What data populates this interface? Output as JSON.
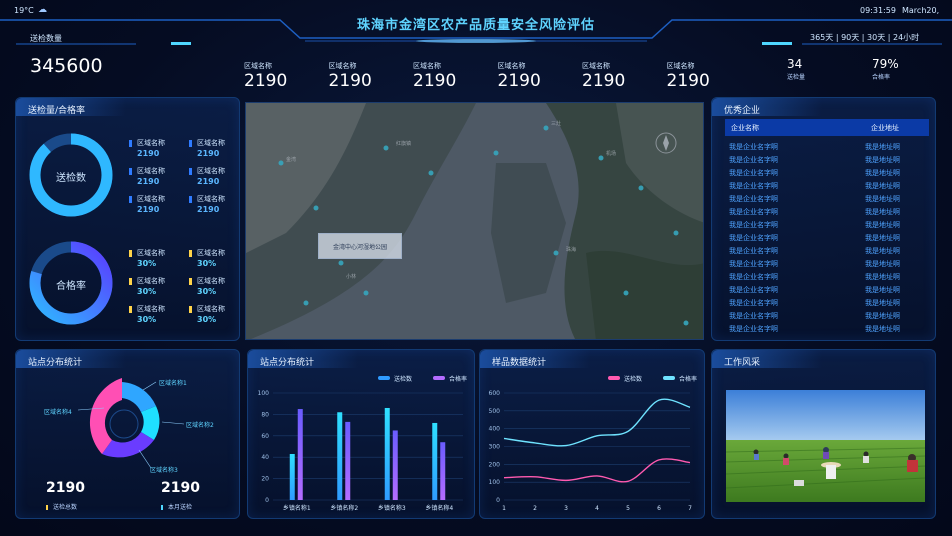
{
  "header": {
    "weather": "19°C",
    "title": "珠海市金湾区农产品质量安全风险评估",
    "time": "09:31:59",
    "date": "March20,"
  },
  "send": {
    "label": "送检数量",
    "total": "345600"
  },
  "regions": [
    {
      "name": "区域名称",
      "value": "2190"
    },
    {
      "name": "区域名称",
      "value": "2190"
    },
    {
      "name": "区域名称",
      "value": "2190"
    },
    {
      "name": "区域名称",
      "value": "2190"
    },
    {
      "name": "区域名称",
      "value": "2190"
    },
    {
      "name": "区域名称",
      "value": "2190"
    }
  ],
  "periods": [
    "365天",
    "90天",
    "30天",
    "24小时"
  ],
  "summary": {
    "count": "34",
    "count_label": "送检量",
    "rate": "79%",
    "rate_label": "合格率"
  },
  "ring_panel": {
    "title": "送检量/合格率",
    "ring1": "送检数",
    "ring2": "合格率",
    "stats1": [
      {
        "name": "区域名称",
        "value": "2190"
      },
      {
        "name": "区域名称",
        "value": "2190"
      },
      {
        "name": "区域名称",
        "value": "2190"
      },
      {
        "name": "区域名称",
        "value": "2190"
      },
      {
        "name": "区域名称",
        "value": "2190"
      },
      {
        "name": "区域名称",
        "value": "2190"
      }
    ],
    "stats2": [
      {
        "name": "区域名称",
        "value": "30%"
      },
      {
        "name": "区域名称",
        "value": "30%"
      },
      {
        "name": "区域名称",
        "value": "30%"
      },
      {
        "name": "区域名称",
        "value": "30%"
      },
      {
        "name": "区域名称",
        "value": "30%"
      },
      {
        "name": "区域名称",
        "value": "30%"
      }
    ]
  },
  "map": {
    "label": "金湾中心河湿地公园"
  },
  "companies": {
    "title": "优秀企业",
    "col1": "企业名称",
    "col2": "企业地址",
    "rows": [
      [
        "我是企业名字啊",
        "我是地址啊"
      ],
      [
        "我是企业名字啊",
        "我是地址啊"
      ],
      [
        "我是企业名字啊",
        "我是地址啊"
      ],
      [
        "我是企业名字啊",
        "我是地址啊"
      ],
      [
        "我是企业名字啊",
        "我是地址啊"
      ],
      [
        "我是企业名字啊",
        "我是地址啊"
      ],
      [
        "我是企业名字啊",
        "我是地址啊"
      ],
      [
        "我是企业名字啊",
        "我是地址啊"
      ],
      [
        "我是企业名字啊",
        "我是地址啊"
      ],
      [
        "我是企业名字啊",
        "我是地址啊"
      ],
      [
        "我是企业名字啊",
        "我是地址啊"
      ],
      [
        "我是企业名字啊",
        "我是地址啊"
      ],
      [
        "我是企业名字啊",
        "我是地址啊"
      ],
      [
        "我是企业名字啊",
        "我是地址啊"
      ],
      [
        "我是企业名字啊",
        "我是地址啊"
      ]
    ]
  },
  "station_pie": {
    "title": "站点分布统计",
    "labels": [
      "区域名称1",
      "区域名称2",
      "区域名称3",
      "区域名称4"
    ],
    "total1": "2190",
    "total1_label": "送检总数",
    "total2": "2190",
    "total2_label": "本月送检"
  },
  "chart_data": [
    {
      "type": "bar",
      "title": "站点分布统计",
      "categories": [
        "乡镇名称1",
        "乡镇名称2",
        "乡镇名称3",
        "乡镇名称4"
      ],
      "series": [
        {
          "name": "送检数",
          "values": [
            43,
            82,
            86,
            72
          ]
        },
        {
          "name": "合格率",
          "values": [
            85,
            73,
            65,
            54
          ]
        }
      ],
      "ylim": [
        0,
        100
      ],
      "yticks": [
        0,
        20,
        40,
        60,
        80,
        100
      ],
      "legend": "top-right"
    },
    {
      "type": "line",
      "title": "样品数据统计",
      "x": [
        1,
        2,
        3,
        4,
        5,
        6,
        7
      ],
      "series": [
        {
          "name": "送检数",
          "values": [
            125,
            130,
            110,
            135,
            105,
            225,
            210
          ]
        },
        {
          "name": "合格率",
          "values": [
            345,
            320,
            305,
            360,
            385,
            560,
            520
          ]
        }
      ],
      "ylim": [
        0,
        600
      ],
      "yticks": [
        0,
        100,
        200,
        300,
        400,
        500,
        600
      ],
      "legend": "top-right"
    }
  ],
  "colors": {
    "bar1": "#2f9bff",
    "bar2": "#b46cff",
    "line1": "#ff5ab0",
    "line2": "#6fe3ff"
  },
  "work": {
    "title": "工作风采"
  }
}
